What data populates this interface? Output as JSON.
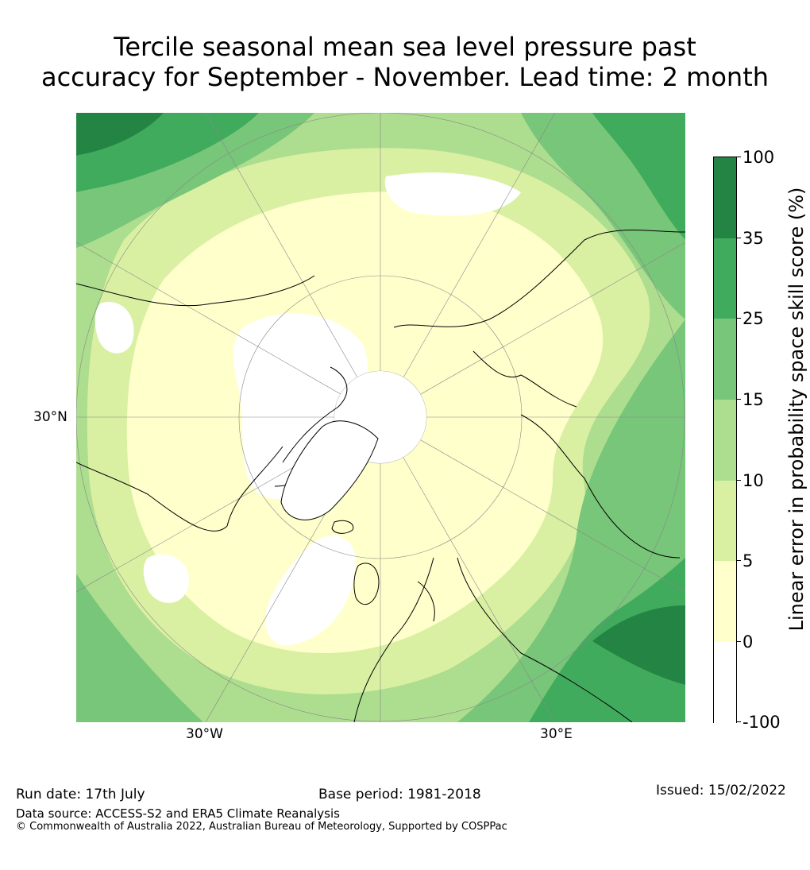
{
  "title": {
    "line1": "Tercile seasonal mean sea level pressure past",
    "line2": "accuracy for September - November. Lead time: 2 month"
  },
  "map": {
    "lat_label": "30°N",
    "lon_labels": [
      "30°W",
      "30°E"
    ],
    "colors": {
      "c_neg": "#ffffff",
      "c0": "#ffffcc",
      "c5": "#d9f0a3",
      "c10": "#addd8e",
      "c15": "#78c679",
      "c25": "#41ab5d",
      "c35": "#238443",
      "coast": "#000000",
      "grid": "#888888"
    }
  },
  "colorbar": {
    "label": "Linear error in probability space skill score (%)",
    "ticks": [
      "100",
      "35",
      "25",
      "15",
      "10",
      "5",
      "0",
      "-100"
    ],
    "bins": [
      {
        "range": "35 to 100",
        "color": "#238443"
      },
      {
        "range": "25 to 35",
        "color": "#41ab5d"
      },
      {
        "range": "15 to 25",
        "color": "#78c679"
      },
      {
        "range": "10 to 15",
        "color": "#addd8e"
      },
      {
        "range": "5 to 10",
        "color": "#d9f0a3"
      },
      {
        "range": "0 to 5",
        "color": "#ffffcc"
      },
      {
        "range": "-100 to 0",
        "color": "#ffffff"
      }
    ]
  },
  "footer": {
    "run_date": "Run date: 17th July",
    "base_period": "Base period: 1981-2018",
    "issued": "Issued: 15/02/2022",
    "data_source": "Data source: ACCESS-S2 and ERA5 Climate Reanalysis",
    "copyright": "© Commonwealth of Australia 2022, Australian Bureau of Meteorology, Supported by COSPPac"
  }
}
